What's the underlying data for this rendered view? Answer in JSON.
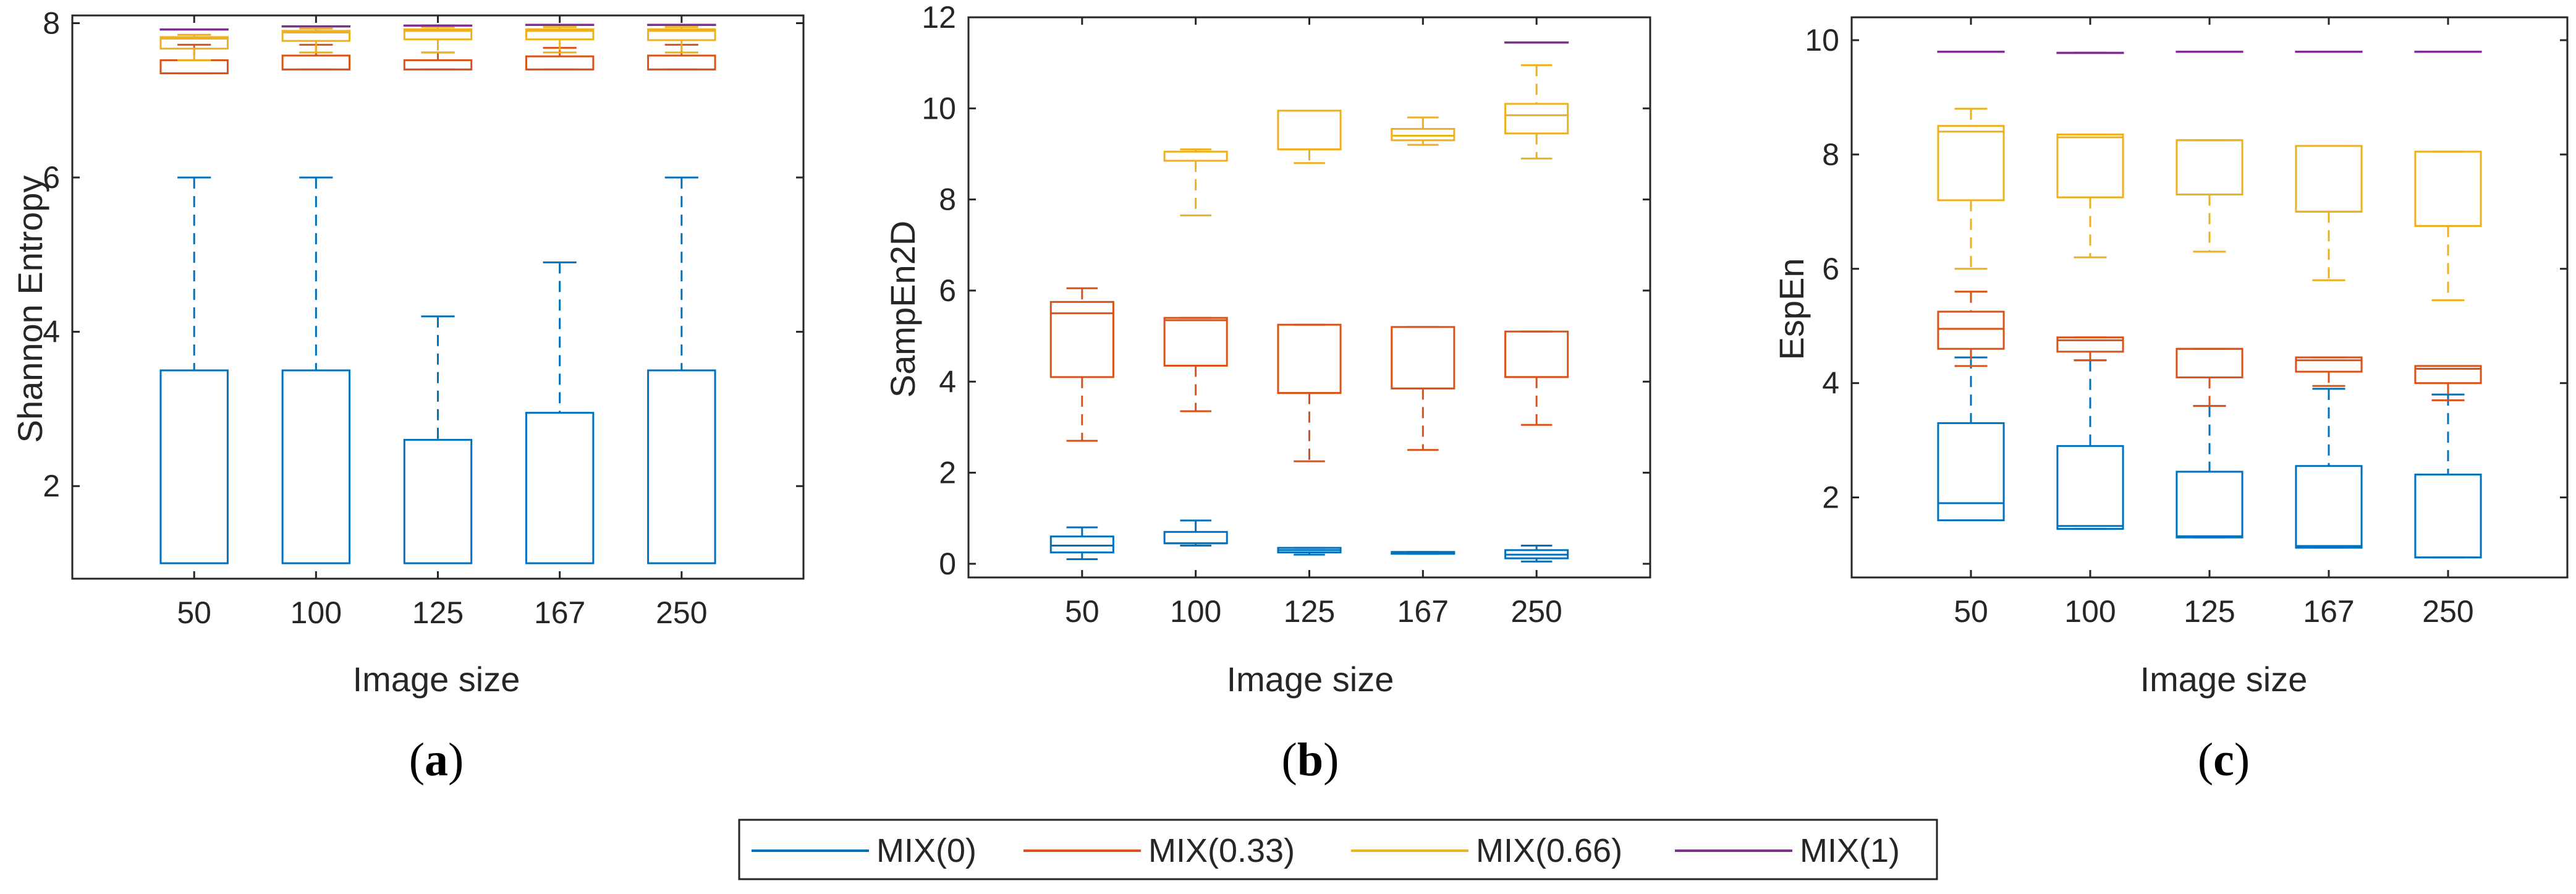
{
  "colors": {
    "mix0": "#0072BD",
    "mix033": "#D95319",
    "mix066": "#EDB120",
    "mix1": "#7E2F8E",
    "axis": "#262626"
  },
  "legend": {
    "items": [
      {
        "label": "MIX(0)",
        "color": "#0072BD"
      },
      {
        "label": "MIX(0.33)",
        "color": "#D95319"
      },
      {
        "label": "MIX(0.66)",
        "color": "#EDB120"
      },
      {
        "label": "MIX(1)",
        "color": "#7E2F8E"
      }
    ],
    "placement": "bottom-center"
  },
  "chart_data": [
    {
      "type": "box",
      "caption_open": "(",
      "caption_letter": "a",
      "caption_close": ")",
      "xlabel": "Image size",
      "ylabel": "Shannon Entropy",
      "categories": [
        "50",
        "100",
        "125",
        "167",
        "250"
      ],
      "ylim": [
        0.8,
        8.1
      ],
      "yticks": [
        2,
        4,
        6,
        8
      ],
      "grid": false,
      "series": [
        {
          "name": "MIX(0)",
          "color": "#0072BD",
          "boxes": [
            {
              "min": 1.0,
              "q1": 1.0,
              "median": 1.0,
              "q3": 3.5,
              "max": 6.0
            },
            {
              "min": 1.0,
              "q1": 1.0,
              "median": 1.0,
              "q3": 3.5,
              "max": 6.0
            },
            {
              "min": 1.0,
              "q1": 1.0,
              "median": 1.0,
              "q3": 2.6,
              "max": 4.2
            },
            {
              "min": 1.0,
              "q1": 1.0,
              "median": 1.0,
              "q3": 2.95,
              "max": 4.9
            },
            {
              "min": 1.0,
              "q1": 1.0,
              "median": 1.0,
              "q3": 3.5,
              "max": 6.0
            }
          ]
        },
        {
          "name": "MIX(0.33)",
          "color": "#D95319",
          "boxes": [
            {
              "min": 7.35,
              "q1": 7.35,
              "median": 7.35,
              "q3": 7.52,
              "max": 7.72
            },
            {
              "min": 7.4,
              "q1": 7.4,
              "median": 7.4,
              "q3": 7.58,
              "max": 7.72
            },
            {
              "min": 7.4,
              "q1": 7.4,
              "median": 7.4,
              "q3": 7.52,
              "max": 7.62
            },
            {
              "min": 7.4,
              "q1": 7.4,
              "median": 7.4,
              "q3": 7.57,
              "max": 7.68
            },
            {
              "min": 7.4,
              "q1": 7.4,
              "median": 7.4,
              "q3": 7.58,
              "max": 7.72
            }
          ]
        },
        {
          "name": "MIX(0.66)",
          "color": "#EDB120",
          "boxes": [
            {
              "min": 7.52,
              "q1": 7.67,
              "median": 7.8,
              "q3": 7.82,
              "max": 7.85
            },
            {
              "min": 7.62,
              "q1": 7.77,
              "median": 7.88,
              "q3": 7.9,
              "max": 7.93
            },
            {
              "min": 7.62,
              "q1": 7.79,
              "median": 7.9,
              "q3": 7.92,
              "max": 7.95
            },
            {
              "min": 7.62,
              "q1": 7.79,
              "median": 7.9,
              "q3": 7.92,
              "max": 7.95
            },
            {
              "min": 7.62,
              "q1": 7.78,
              "median": 7.9,
              "q3": 7.92,
              "max": 7.95
            }
          ]
        },
        {
          "name": "MIX(1)",
          "color": "#7E2F8E",
          "boxes": [
            {
              "min": 7.92,
              "q1": 7.92,
              "median": 7.92,
              "q3": 7.92,
              "max": 7.92
            },
            {
              "min": 7.96,
              "q1": 7.96,
              "median": 7.96,
              "q3": 7.96,
              "max": 7.96
            },
            {
              "min": 7.97,
              "q1": 7.97,
              "median": 7.97,
              "q3": 7.97,
              "max": 7.97
            },
            {
              "min": 7.98,
              "q1": 7.98,
              "median": 7.98,
              "q3": 7.98,
              "max": 7.98
            },
            {
              "min": 7.98,
              "q1": 7.98,
              "median": 7.98,
              "q3": 7.98,
              "max": 7.98
            }
          ]
        }
      ]
    },
    {
      "type": "box",
      "caption_open": "(",
      "caption_letter": "b",
      "caption_close": ")",
      "xlabel": "Image size",
      "ylabel": "SampEn2D",
      "categories": [
        "50",
        "100",
        "125",
        "167",
        "250"
      ],
      "ylim": [
        -0.3,
        12
      ],
      "yticks": [
        0,
        2,
        4,
        6,
        8,
        10,
        12
      ],
      "grid": false,
      "series": [
        {
          "name": "MIX(0)",
          "color": "#0072BD",
          "boxes": [
            {
              "min": 0.1,
              "q1": 0.25,
              "median": 0.4,
              "q3": 0.6,
              "max": 0.8
            },
            {
              "min": 0.4,
              "q1": 0.45,
              "median": 0.45,
              "q3": 0.7,
              "max": 0.95
            },
            {
              "min": 0.2,
              "q1": 0.25,
              "median": 0.3,
              "q3": 0.35,
              "max": 0.35
            },
            {
              "min": 0.22,
              "q1": 0.22,
              "median": 0.24,
              "q3": 0.26,
              "max": 0.26
            },
            {
              "min": 0.05,
              "q1": 0.12,
              "median": 0.2,
              "q3": 0.3,
              "max": 0.4
            }
          ]
        },
        {
          "name": "MIX(0.33)",
          "color": "#D95319",
          "boxes": [
            {
              "min": 2.7,
              "q1": 4.1,
              "median": 5.5,
              "q3": 5.75,
              "max": 6.05
            },
            {
              "min": 3.35,
              "q1": 4.35,
              "median": 5.35,
              "q3": 5.4,
              "max": 5.4
            },
            {
              "min": 2.25,
              "q1": 3.75,
              "median": 3.75,
              "q3": 5.25,
              "max": 5.25
            },
            {
              "min": 2.5,
              "q1": 3.85,
              "median": 3.85,
              "q3": 5.2,
              "max": 5.2
            },
            {
              "min": 3.05,
              "q1": 4.1,
              "median": 4.1,
              "q3": 5.1,
              "max": 5.1
            }
          ]
        },
        {
          "name": "MIX(0.66)",
          "color": "#EDB120",
          "boxes": [
            {
              "min": null,
              "q1": null,
              "median": null,
              "q3": null,
              "max": null
            },
            {
              "min": 7.65,
              "q1": 8.85,
              "median": 8.85,
              "q3": 9.05,
              "max": 9.1
            },
            {
              "min": 8.8,
              "q1": 9.1,
              "median": 9.1,
              "q3": 9.95,
              "max": 9.95
            },
            {
              "min": 9.2,
              "q1": 9.3,
              "median": 9.4,
              "q3": 9.55,
              "max": 9.8
            },
            {
              "min": 8.9,
              "q1": 9.45,
              "median": 9.85,
              "q3": 10.1,
              "max": 10.95
            }
          ]
        },
        {
          "name": "MIX(1)",
          "color": "#7E2F8E",
          "boxes": [
            {
              "min": null,
              "q1": null,
              "median": null,
              "q3": null,
              "max": null
            },
            {
              "min": null,
              "q1": null,
              "median": null,
              "q3": null,
              "max": null
            },
            {
              "min": null,
              "q1": null,
              "median": null,
              "q3": null,
              "max": null
            },
            {
              "min": null,
              "q1": null,
              "median": null,
              "q3": null,
              "max": null
            },
            {
              "min": 11.45,
              "q1": 11.45,
              "median": 11.45,
              "q3": 11.45,
              "max": 11.45
            }
          ]
        }
      ]
    },
    {
      "type": "box",
      "caption_open": "(",
      "caption_letter": "c",
      "caption_close": ")",
      "xlabel": "Image size",
      "ylabel": "EspEn",
      "categories": [
        "50",
        "100",
        "125",
        "167",
        "250"
      ],
      "ylim": [
        0.6,
        10.4
      ],
      "yticks": [
        2,
        4,
        6,
        8,
        10
      ],
      "grid": false,
      "series": [
        {
          "name": "MIX(0)",
          "color": "#0072BD",
          "boxes": [
            {
              "min": 1.6,
              "q1": 1.6,
              "median": 1.9,
              "q3": 3.3,
              "max": 4.45
            },
            {
              "min": 1.45,
              "q1": 1.45,
              "median": 1.5,
              "q3": 2.9,
              "max": 4.4
            },
            {
              "min": 1.3,
              "q1": 1.3,
              "median": 1.32,
              "q3": 2.45,
              "max": 3.6
            },
            {
              "min": 1.12,
              "q1": 1.12,
              "median": 1.15,
              "q3": 2.55,
              "max": 3.9
            },
            {
              "min": 0.95,
              "q1": 0.95,
              "median": 0.95,
              "q3": 2.4,
              "max": 3.8
            }
          ]
        },
        {
          "name": "MIX(0.33)",
          "color": "#D95319",
          "boxes": [
            {
              "min": 4.3,
              "q1": 4.6,
              "median": 4.95,
              "q3": 5.25,
              "max": 5.6
            },
            {
              "min": 4.4,
              "q1": 4.55,
              "median": 4.75,
              "q3": 4.8,
              "max": 4.8
            },
            {
              "min": 3.6,
              "q1": 4.1,
              "median": 4.6,
              "q3": 4.6,
              "max": 4.6
            },
            {
              "min": 3.95,
              "q1": 4.2,
              "median": 4.4,
              "q3": 4.45,
              "max": 4.45
            },
            {
              "min": 3.7,
              "q1": 4.0,
              "median": 4.25,
              "q3": 4.3,
              "max": 4.3
            }
          ]
        },
        {
          "name": "MIX(0.66)",
          "color": "#EDB120",
          "boxes": [
            {
              "min": 6.0,
              "q1": 7.2,
              "median": 8.4,
              "q3": 8.5,
              "max": 8.8
            },
            {
              "min": 6.2,
              "q1": 7.25,
              "median": 8.3,
              "q3": 8.35,
              "max": 8.35
            },
            {
              "min": 6.3,
              "q1": 7.3,
              "median": 8.25,
              "q3": 8.25,
              "max": 8.25
            },
            {
              "min": 5.8,
              "q1": 7.0,
              "median": 7.0,
              "q3": 8.15,
              "max": 8.15
            },
            {
              "min": 5.45,
              "q1": 6.75,
              "median": 6.75,
              "q3": 8.05,
              "max": 8.05
            }
          ]
        },
        {
          "name": "MIX(1)",
          "color": "#7E2F8E",
          "boxes": [
            {
              "min": 9.8,
              "q1": 9.8,
              "median": 9.8,
              "q3": 9.8,
              "max": 9.8
            },
            {
              "min": 9.78,
              "q1": 9.78,
              "median": 9.78,
              "q3": 9.78,
              "max": 9.78
            },
            {
              "min": 9.8,
              "q1": 9.8,
              "median": 9.8,
              "q3": 9.8,
              "max": 9.8
            },
            {
              "min": 9.8,
              "q1": 9.8,
              "median": 9.8,
              "q3": 9.8,
              "max": 9.8
            },
            {
              "min": 9.8,
              "q1": 9.8,
              "median": 9.8,
              "q3": 9.8,
              "max": 9.8
            }
          ]
        }
      ]
    }
  ]
}
